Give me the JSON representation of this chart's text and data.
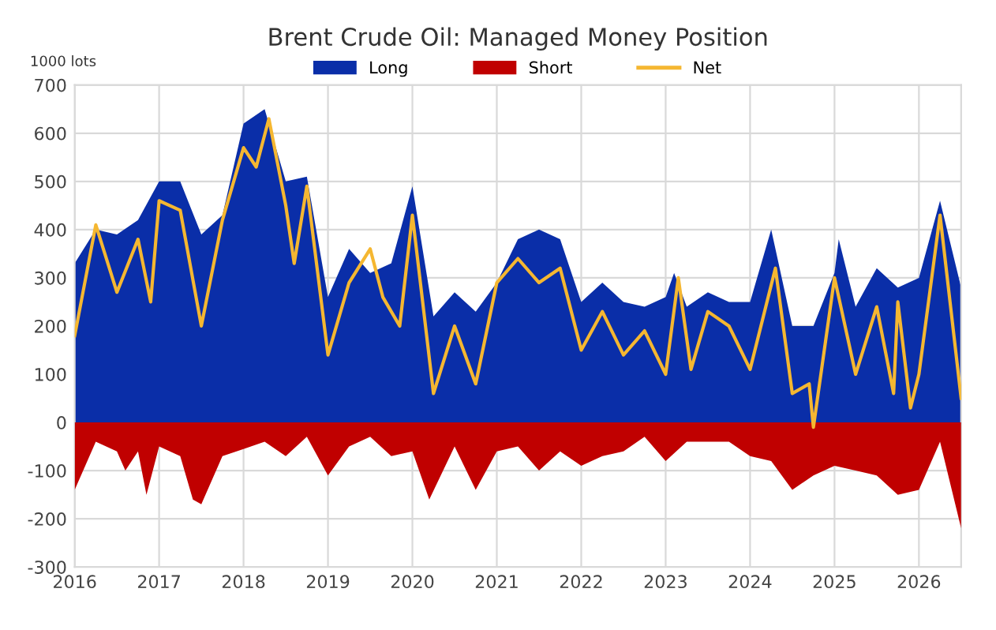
{
  "chart_data": {
    "type": "area",
    "title": "Brent Crude Oil: Managed Money Position",
    "ylabel": "1000 lots",
    "xlim": [
      2016,
      2026.5
    ],
    "xticks": [
      2016,
      2017,
      2018,
      2019,
      2020,
      2021,
      2022,
      2023,
      2024,
      2025,
      2026
    ],
    "ylim": [
      -300,
      700
    ],
    "yticks": [
      -300,
      -200,
      -100,
      0,
      100,
      200,
      300,
      400,
      500,
      600,
      700
    ],
    "grid": true,
    "legend": "top",
    "series": [
      {
        "name": "Long",
        "color": "#0a2ea8",
        "x": [
          2016.0,
          2016.25,
          2016.5,
          2016.75,
          2017.0,
          2017.25,
          2017.5,
          2017.75,
          2018.0,
          2018.25,
          2018.5,
          2018.75,
          2019.0,
          2019.25,
          2019.5,
          2019.75,
          2020.0,
          2020.25,
          2020.5,
          2020.75,
          2021.0,
          2021.25,
          2021.5,
          2021.75,
          2022.0,
          2022.25,
          2022.5,
          2022.75,
          2023.0,
          2023.1,
          2023.25,
          2023.5,
          2023.75,
          2024.0,
          2024.25,
          2024.5,
          2024.75,
          2025.0,
          2025.05,
          2025.25,
          2025.5,
          2025.75,
          2026.0,
          2026.25,
          2026.5
        ],
        "values": [
          330,
          400,
          390,
          420,
          500,
          500,
          390,
          430,
          620,
          650,
          500,
          510,
          260,
          360,
          310,
          330,
          490,
          220,
          270,
          230,
          290,
          380,
          400,
          380,
          250,
          290,
          250,
          240,
          260,
          310,
          240,
          270,
          250,
          250,
          400,
          200,
          200,
          310,
          380,
          240,
          320,
          280,
          300,
          460,
          280
        ]
      },
      {
        "name": "Short",
        "color": "#c00000",
        "x": [
          2016.0,
          2016.25,
          2016.5,
          2016.6,
          2016.75,
          2016.85,
          2017.0,
          2017.25,
          2017.4,
          2017.5,
          2017.75,
          2018.0,
          2018.25,
          2018.5,
          2018.75,
          2019.0,
          2019.25,
          2019.5,
          2019.75,
          2020.0,
          2020.2,
          2020.5,
          2020.75,
          2021.0,
          2021.25,
          2021.5,
          2021.75,
          2022.0,
          2022.25,
          2022.5,
          2022.75,
          2023.0,
          2023.25,
          2023.5,
          2023.75,
          2024.0,
          2024.25,
          2024.5,
          2024.75,
          2025.0,
          2025.25,
          2025.5,
          2025.75,
          2026.0,
          2026.25,
          2026.5
        ],
        "values": [
          -140,
          -40,
          -60,
          -100,
          -60,
          -150,
          -50,
          -70,
          -160,
          -170,
          -70,
          -55,
          -40,
          -70,
          -30,
          -110,
          -50,
          -30,
          -70,
          -60,
          -160,
          -50,
          -140,
          -60,
          -50,
          -100,
          -60,
          -90,
          -70,
          -60,
          -30,
          -80,
          -40,
          -40,
          -40,
          -70,
          -80,
          -140,
          -110,
          -90,
          -100,
          -110,
          -150,
          -140,
          -40,
          -220
        ]
      },
      {
        "name": "Net",
        "type": "line",
        "color": "#f5b731",
        "x": [
          2016.0,
          2016.25,
          2016.5,
          2016.75,
          2016.9,
          2017.0,
          2017.25,
          2017.5,
          2017.75,
          2018.0,
          2018.15,
          2018.3,
          2018.5,
          2018.6,
          2018.75,
          2019.0,
          2019.25,
          2019.5,
          2019.65,
          2019.85,
          2020.0,
          2020.25,
          2020.5,
          2020.75,
          2021.0,
          2021.25,
          2021.5,
          2021.75,
          2022.0,
          2022.25,
          2022.5,
          2022.75,
          2023.0,
          2023.15,
          2023.3,
          2023.5,
          2023.75,
          2024.0,
          2024.3,
          2024.5,
          2024.7,
          2024.75,
          2025.0,
          2025.25,
          2025.5,
          2025.7,
          2025.75,
          2025.9,
          2026.0,
          2026.25,
          2026.5
        ],
        "values": [
          180,
          410,
          270,
          380,
          250,
          460,
          440,
          200,
          420,
          570,
          530,
          630,
          450,
          330,
          490,
          140,
          290,
          360,
          260,
          200,
          430,
          60,
          200,
          80,
          290,
          340,
          290,
          320,
          150,
          230,
          140,
          190,
          100,
          300,
          110,
          230,
          200,
          110,
          320,
          60,
          80,
          -10,
          300,
          100,
          240,
          60,
          250,
          30,
          100,
          430,
          50
        ]
      }
    ]
  }
}
